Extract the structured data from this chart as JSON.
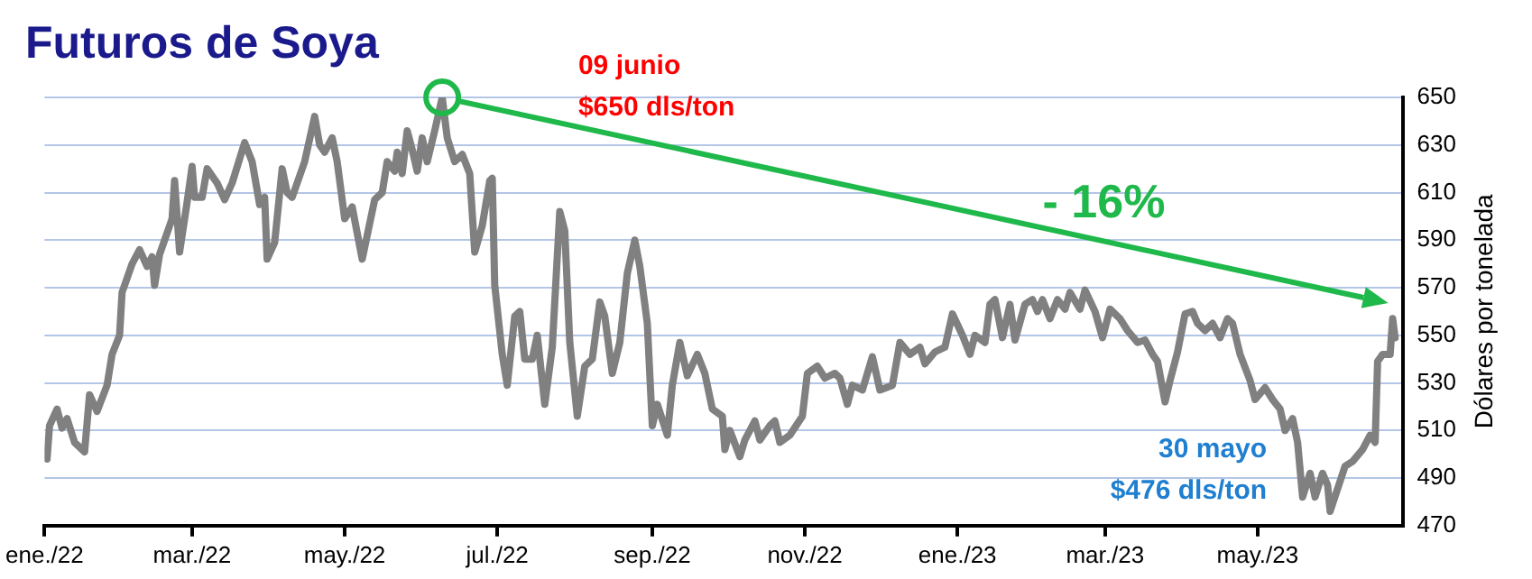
{
  "chart_data": {
    "type": "line",
    "title": "Futuros de Soya",
    "ylabel": "Dólares por tonelada",
    "x": [
      "2022-01-02",
      "2022-01-03",
      "2022-01-06",
      "2022-01-08",
      "2022-01-10",
      "2022-01-13",
      "2022-01-17",
      "2022-01-19",
      "2022-01-22",
      "2022-01-26",
      "2022-01-28",
      "2022-01-31",
      "2022-02-01",
      "2022-02-05",
      "2022-02-08",
      "2022-02-11",
      "2022-02-13",
      "2022-02-14",
      "2022-02-16",
      "2022-02-21",
      "2022-02-22",
      "2022-02-24",
      "2022-02-27",
      "2022-03-01",
      "2022-03-02",
      "2022-03-05",
      "2022-03-07",
      "2022-03-11",
      "2022-03-14",
      "2022-03-17",
      "2022-03-22",
      "2022-03-25",
      "2022-03-28",
      "2022-03-30",
      "2022-03-31",
      "2022-04-03",
      "2022-04-06",
      "2022-04-08",
      "2022-04-10",
      "2022-04-15",
      "2022-04-19",
      "2022-04-21",
      "2022-04-23",
      "2022-04-26",
      "2022-04-28",
      "2022-05-01",
      "2022-05-04",
      "2022-05-08",
      "2022-05-11",
      "2022-05-13",
      "2022-05-16",
      "2022-05-18",
      "2022-05-21",
      "2022-05-22",
      "2022-05-24",
      "2022-05-26",
      "2022-05-28",
      "2022-05-30",
      "2022-06-01",
      "2022-06-03",
      "2022-06-06",
      "2022-06-09",
      "2022-06-11",
      "2022-06-14",
      "2022-06-17",
      "2022-06-20",
      "2022-06-22",
      "2022-06-25",
      "2022-06-28",
      "2022-06-29",
      "2022-06-30",
      "2022-07-03",
      "2022-07-05",
      "2022-07-08",
      "2022-07-10",
      "2022-07-12",
      "2022-07-15",
      "2022-07-17",
      "2022-07-20",
      "2022-07-23",
      "2022-07-26",
      "2022-07-28",
      "2022-07-30",
      "2022-08-02",
      "2022-08-05",
      "2022-08-08",
      "2022-08-11",
      "2022-08-13",
      "2022-08-16",
      "2022-08-19",
      "2022-08-22",
      "2022-08-25",
      "2022-08-27",
      "2022-08-30",
      "2022-09-01",
      "2022-09-03",
      "2022-09-07",
      "2022-09-09",
      "2022-09-12",
      "2022-09-15",
      "2022-09-19",
      "2022-09-22",
      "2022-09-25",
      "2022-09-29",
      "2022-09-30",
      "2022-10-02",
      "2022-10-06",
      "2022-10-08",
      "2022-10-12",
      "2022-10-14",
      "2022-10-18",
      "2022-10-20",
      "2022-10-22",
      "2022-10-26",
      "2022-10-31",
      "2022-11-02",
      "2022-11-06",
      "2022-11-09",
      "2022-11-13",
      "2022-11-15",
      "2022-11-18",
      "2022-11-20",
      "2022-11-24",
      "2022-11-28",
      "2022-12-01",
      "2022-12-06",
      "2022-12-09",
      "2022-12-13",
      "2022-12-17",
      "2022-12-19",
      "2022-12-23",
      "2022-12-27",
      "2022-12-30",
      "2023-01-03",
      "2023-01-06",
      "2023-01-08",
      "2023-01-12",
      "2023-01-14",
      "2023-01-16",
      "2023-01-19",
      "2023-01-22",
      "2023-01-24",
      "2023-01-28",
      "2023-01-31",
      "2023-02-02",
      "2023-02-04",
      "2023-02-07",
      "2023-02-10",
      "2023-02-13",
      "2023-02-15",
      "2023-02-19",
      "2023-02-21",
      "2023-02-25",
      "2023-02-28",
      "2023-03-03",
      "2023-03-07",
      "2023-03-10",
      "2023-03-14",
      "2023-03-17",
      "2023-03-20",
      "2023-03-22",
      "2023-03-25",
      "2023-03-27",
      "2023-03-30",
      "2023-04-02",
      "2023-04-05",
      "2023-04-07",
      "2023-04-10",
      "2023-04-13",
      "2023-04-16",
      "2023-04-19",
      "2023-04-21",
      "2023-04-24",
      "2023-04-28",
      "2023-04-30",
      "2023-05-04",
      "2023-05-07",
      "2023-05-10",
      "2023-05-12",
      "2023-05-15",
      "2023-05-17",
      "2023-05-19",
      "2023-05-22",
      "2023-05-24",
      "2023-05-27",
      "2023-05-29",
      "2023-05-30",
      "2023-06-05",
      "2023-06-08",
      "2023-06-12",
      "2023-06-15",
      "2023-06-17",
      "2023-06-18",
      "2023-06-20",
      "2023-06-23",
      "2023-06-24",
      "2023-06-25"
    ],
    "series": [
      {
        "color": "#808080",
        "values": [
          498,
          512,
          519,
          511,
          515,
          505,
          501,
          525,
          518,
          529,
          542,
          550,
          568,
          580,
          586,
          579,
          583,
          571,
          584,
          599,
          615,
          585,
          606,
          621,
          608,
          608,
          620,
          614,
          607,
          614,
          631,
          623,
          605,
          608,
          582,
          589,
          620,
          610,
          608,
          623,
          642,
          630,
          627,
          633,
          623,
          599,
          604,
          582,
          597,
          607,
          610,
          623,
          619,
          627,
          618,
          636,
          628,
          619,
          633,
          623,
          636,
          650,
          633,
          623,
          626,
          618,
          585,
          596,
          615,
          616,
          571,
          542,
          529,
          558,
          560,
          540,
          540,
          550,
          521,
          545,
          602,
          594,
          547,
          516,
          537,
          540,
          564,
          558,
          534,
          547,
          576,
          590,
          579,
          555,
          512,
          521,
          508,
          529,
          547,
          533,
          542,
          534,
          519,
          516,
          502,
          510,
          499,
          506,
          514,
          506,
          512,
          514,
          505,
          508,
          516,
          534,
          537,
          532,
          534,
          532,
          521,
          529,
          527,
          541,
          527,
          529,
          547,
          542,
          545,
          538,
          543,
          545,
          559,
          550,
          542,
          550,
          547,
          563,
          565,
          549,
          563,
          548,
          563,
          565,
          560,
          565,
          557,
          565,
          561,
          568,
          561,
          569,
          560,
          549,
          561,
          557,
          552,
          547,
          548,
          542,
          539,
          522,
          531,
          543,
          559,
          560,
          555,
          552,
          555,
          549,
          557,
          555,
          542,
          531,
          523,
          528,
          523,
          519,
          510,
          515,
          505,
          482,
          492,
          482,
          492,
          487,
          476,
          495,
          497,
          502,
          508,
          505,
          539,
          542,
          542,
          557,
          549
        ]
      }
    ],
    "xlim": [
      "2022-01-01",
      "2023-06-28"
    ],
    "xticks": [
      {
        "value": "2022-01-01",
        "label": "ene./22"
      },
      {
        "value": "2022-03-01",
        "label": "mar./22"
      },
      {
        "value": "2022-05-01",
        "label": "may./22"
      },
      {
        "value": "2022-07-01",
        "label": "jul./22"
      },
      {
        "value": "2022-09-01",
        "label": "sep./22"
      },
      {
        "value": "2022-11-01",
        "label": "nov./22"
      },
      {
        "value": "2023-01-01",
        "label": "ene./23"
      },
      {
        "value": "2023-03-01",
        "label": "mar./23"
      },
      {
        "value": "2023-05-01",
        "label": "may./23"
      }
    ],
    "ylim": [
      470,
      650
    ],
    "yticks": [
      470,
      490,
      510,
      530,
      550,
      570,
      590,
      610,
      630,
      650
    ],
    "grid": "y",
    "legend": false,
    "marker": "none",
    "line_style": "solid",
    "annotations": [
      "09 junio\n$650 dls/ton",
      "30 mayo\n$476 dls/ton",
      "- 16%"
    ]
  }
}
